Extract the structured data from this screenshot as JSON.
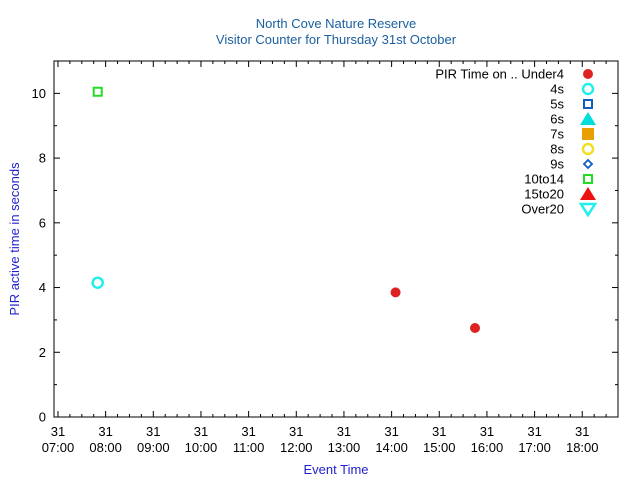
{
  "chart_data": {
    "type": "scatter",
    "title": "North Cove Nature Reserve",
    "subtitle": "Visitor Counter for Thursday 31st October",
    "xlabel": "Event Time",
    "ylabel": "PIR active time in seconds",
    "x_axis": {
      "type": "time",
      "min": "31 06:55",
      "max": "31 18:45",
      "tick_labels": [
        {
          "day": "31",
          "time": "07:00"
        },
        {
          "day": "31",
          "time": "08:00"
        },
        {
          "day": "31",
          "time": "09:00"
        },
        {
          "day": "31",
          "time": "10:00"
        },
        {
          "day": "31",
          "time": "11:00"
        },
        {
          "day": "31",
          "time": "12:00"
        },
        {
          "day": "31",
          "time": "13:00"
        },
        {
          "day": "31",
          "time": "14:00"
        },
        {
          "day": "31",
          "time": "15:00"
        },
        {
          "day": "31",
          "time": "16:00"
        },
        {
          "day": "31",
          "time": "17:00"
        },
        {
          "day": "31",
          "time": "18:00"
        }
      ]
    },
    "y_axis": {
      "min": 0,
      "max": 11,
      "ticks": [
        0,
        2,
        4,
        6,
        8,
        10
      ]
    },
    "grid": false,
    "legend": {
      "placement": "top-right",
      "title": "PIR Time on .."
    },
    "series": [
      {
        "name": "Under4",
        "marker": "circle-filled",
        "color": "#dd2222",
        "points": [
          {
            "x": "31 14:05",
            "y": 3.85
          },
          {
            "x": "31 15:45",
            "y": 2.75
          }
        ]
      },
      {
        "name": "4s",
        "marker": "circle-open",
        "color": "#22eeee",
        "points": [
          {
            "x": "31 07:50",
            "y": 4.15
          }
        ]
      },
      {
        "name": "5s",
        "marker": "square-open",
        "color": "#1060c0",
        "points": []
      },
      {
        "name": "6s",
        "marker": "triangle-filled",
        "color": "#00dddd",
        "points": []
      },
      {
        "name": "7s",
        "marker": "square-filled",
        "color": "#e8a000",
        "points": []
      },
      {
        "name": "8s",
        "marker": "circle-open",
        "color": "#f0e020",
        "points": []
      },
      {
        "name": "9s",
        "marker": "diamond-open",
        "color": "#1060c0",
        "points": []
      },
      {
        "name": "10to14",
        "marker": "square-open",
        "color": "#22dd22",
        "points": [
          {
            "x": "31 07:50",
            "y": 10.05
          }
        ]
      },
      {
        "name": "15to20",
        "marker": "triangle-filled",
        "color": "#ee1111",
        "points": []
      },
      {
        "name": "Over20",
        "marker": "triangle-down-open",
        "color": "#22eeee",
        "points": []
      }
    ]
  }
}
